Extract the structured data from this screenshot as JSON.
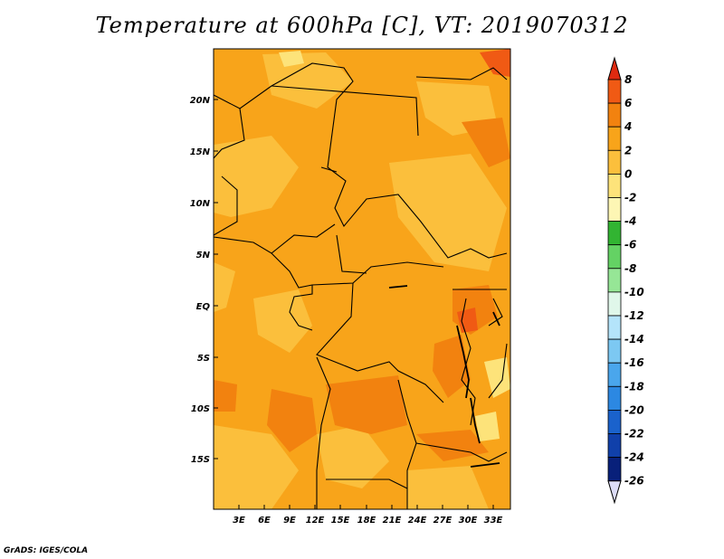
{
  "title": "Temperature at 600hPa [C], VT: 2019070312",
  "credit": "GrADS: IGES/COLA",
  "map": {
    "lat_labels": [
      "20N",
      "15N",
      "10N",
      "5N",
      "EQ",
      "5S",
      "10S",
      "15S"
    ],
    "lon_labels": [
      "3E",
      "6E",
      "9E",
      "12E",
      "15E",
      "18E",
      "21E",
      "24E",
      "27E",
      "30E",
      "33E"
    ]
  },
  "colorbar": {
    "levels": [
      "8",
      "6",
      "4",
      "2",
      "0",
      "-2",
      "-4",
      "-6",
      "-8",
      "-10",
      "-12",
      "-14",
      "-16",
      "-18",
      "-20",
      "-22",
      "-24",
      "-26"
    ],
    "colors": [
      "#de2a10",
      "#f05a14",
      "#f2820f",
      "#f8a41a",
      "#fbbf3c",
      "#fde37a",
      "#fdf6b4",
      "#32b432",
      "#64d264",
      "#96e696",
      "#e0f7ea",
      "#b4e4fa",
      "#7cc8f2",
      "#4aa6ec",
      "#2c88e2",
      "#1a62cc",
      "#1040aa",
      "#08207a",
      "#04105a",
      "#dcdcf8"
    ]
  }
}
